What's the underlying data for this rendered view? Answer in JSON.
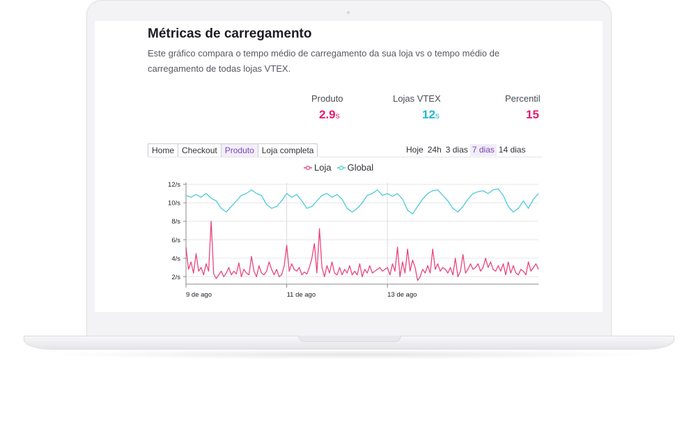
{
  "header": {
    "title": "Métricas de carregamento",
    "description": "Este gráfico compara o tempo médio de carregamento da sua loja vs o tempo médio de carregamento de todas lojas VTEX."
  },
  "metrics": [
    {
      "label": "Produto",
      "value": "2.9",
      "unit": "s",
      "color": "#e8196e"
    },
    {
      "label": "Lojas VTEX",
      "value": "12",
      "unit": "s",
      "color": "#1fb8d1"
    },
    {
      "label": "Percentil",
      "value": "15",
      "unit": "",
      "color": "#e8196e"
    }
  ],
  "page_tabs": [
    {
      "label": "Home",
      "active": false
    },
    {
      "label": "Checkout",
      "active": false
    },
    {
      "label": "Produto",
      "active": true
    },
    {
      "label": "Loja completa",
      "active": false
    }
  ],
  "range_tabs": [
    {
      "label": "Hoje",
      "active": false
    },
    {
      "label": "24h",
      "active": false
    },
    {
      "label": "3 dias",
      "active": false
    },
    {
      "label": "7 dias",
      "active": true
    },
    {
      "label": "14 dias",
      "active": false
    }
  ],
  "colors": {
    "accent": "#7a46b3",
    "loja": "#e8457e",
    "global": "#4dc9dc"
  },
  "chart_data": {
    "type": "line",
    "title": "",
    "xlabel": "",
    "ylabel": "",
    "ylim": [
      1.2,
      12.2
    ],
    "xlim": [
      0,
      7
    ],
    "y_ticks": [
      {
        "value": 12,
        "label": "12/s"
      },
      {
        "value": 10,
        "label": "10/s"
      },
      {
        "value": 8,
        "label": "8/s"
      },
      {
        "value": 6,
        "label": "6/s"
      },
      {
        "value": 4,
        "label": "4/s"
      },
      {
        "value": 2,
        "label": "2/s"
      }
    ],
    "x_ticks": [
      {
        "value": 0,
        "label": "9 de ago"
      },
      {
        "value": 2,
        "label": "11 de ago"
      },
      {
        "value": 4,
        "label": "13 de ago"
      }
    ],
    "legend": "top-center",
    "grid": true,
    "series": [
      {
        "name": "Loja",
        "color": "#e8457e",
        "x": [
          0,
          0.05,
          0.1,
          0.15,
          0.2,
          0.25,
          0.3,
          0.35,
          0.4,
          0.45,
          0.5,
          0.55,
          0.6,
          0.65,
          0.7,
          0.75,
          0.8,
          0.85,
          0.9,
          0.95,
          1,
          1.05,
          1.1,
          1.15,
          1.2,
          1.25,
          1.3,
          1.35,
          1.4,
          1.45,
          1.5,
          1.55,
          1.6,
          1.65,
          1.7,
          1.75,
          1.8,
          1.85,
          1.9,
          1.95,
          2,
          2.05,
          2.1,
          2.15,
          2.2,
          2.25,
          2.3,
          2.35,
          2.4,
          2.45,
          2.5,
          2.55,
          2.6,
          2.65,
          2.7,
          2.75,
          2.8,
          2.85,
          2.9,
          2.95,
          3,
          3.05,
          3.1,
          3.15,
          3.2,
          3.25,
          3.3,
          3.35,
          3.4,
          3.45,
          3.5,
          3.55,
          3.6,
          3.65,
          3.7,
          3.75,
          3.8,
          3.85,
          3.9,
          3.95,
          4,
          4.05,
          4.1,
          4.15,
          4.2,
          4.25,
          4.3,
          4.35,
          4.4,
          4.45,
          4.5,
          4.55,
          4.6,
          4.65,
          4.7,
          4.75,
          4.8,
          4.85,
          4.9,
          4.95,
          5,
          5.05,
          5.1,
          5.15,
          5.2,
          5.25,
          5.3,
          5.35,
          5.4,
          5.45,
          5.5,
          5.55,
          5.6,
          5.65,
          5.7,
          5.75,
          5.8,
          5.85,
          5.9,
          5.95,
          6,
          6.05,
          6.1,
          6.15,
          6.2,
          6.25,
          6.3,
          6.35,
          6.4,
          6.45,
          6.5,
          6.55,
          6.6,
          6.65,
          6.7,
          6.75,
          6.8,
          6.85,
          6.9,
          6.95,
          7
        ],
        "values": [
          5.2,
          2.8,
          3.6,
          2.4,
          4.5,
          2.6,
          3.0,
          2.2,
          3.4,
          2.6,
          8.0,
          2.3,
          1.8,
          2.2,
          2.6,
          2.0,
          2.4,
          3.0,
          2.2,
          2.6,
          2.3,
          3.5,
          2.0,
          2.8,
          2.4,
          2.2,
          4.2,
          2.6,
          2.0,
          3.2,
          2.4,
          2.2,
          2.6,
          3.6,
          2.8,
          2.2,
          2.8,
          2.0,
          2.2,
          3.2,
          5.4,
          2.6,
          3.4,
          2.8,
          2.6,
          3.0,
          2.2,
          2.5,
          2.3,
          3.0,
          4.0,
          5.6,
          2.4,
          7.2,
          3.0,
          2.0,
          3.2,
          2.4,
          3.6,
          2.4,
          2.2,
          3.0,
          2.2,
          2.8,
          2.4,
          3.2,
          2.2,
          2.6,
          2.2,
          3.4,
          2.0,
          2.8,
          2.4,
          3.2,
          2.4,
          2.6,
          2.8,
          3.0,
          2.6,
          2.8,
          3.0,
          2.2,
          3.4,
          2.6,
          5.2,
          2.0,
          3.6,
          2.4,
          5.0,
          2.6,
          3.8,
          3.0,
          1.6,
          2.0,
          2.8,
          2.4,
          3.2,
          2.4,
          5.0,
          2.8,
          3.4,
          2.6,
          3.0,
          2.8,
          2.4,
          3.0,
          2.2,
          4.0,
          2.0,
          2.6,
          4.4,
          2.4,
          2.8,
          3.4,
          2.8,
          3.0,
          3.4,
          2.6,
          3.0,
          4.0,
          3.0,
          3.6,
          2.8,
          2.6,
          3.2,
          2.6,
          3.4,
          2.2,
          3.6,
          2.4,
          3.2,
          2.4,
          2.2,
          2.8,
          2.6,
          2.2,
          3.6,
          2.6,
          3.0,
          3.4,
          2.8
        ]
      },
      {
        "name": "Global",
        "color": "#4dc9dc",
        "x": [
          0,
          0.1,
          0.2,
          0.3,
          0.4,
          0.5,
          0.6,
          0.7,
          0.8,
          0.9,
          1,
          1.1,
          1.2,
          1.3,
          1.4,
          1.5,
          1.6,
          1.7,
          1.8,
          1.9,
          2,
          2.1,
          2.2,
          2.3,
          2.4,
          2.5,
          2.6,
          2.7,
          2.8,
          2.9,
          3,
          3.1,
          3.2,
          3.3,
          3.4,
          3.5,
          3.6,
          3.7,
          3.8,
          3.9,
          4,
          4.1,
          4.2,
          4.3,
          4.4,
          4.5,
          4.6,
          4.7,
          4.8,
          4.9,
          5,
          5.1,
          5.2,
          5.3,
          5.4,
          5.5,
          5.6,
          5.7,
          5.8,
          5.9,
          6,
          6.1,
          6.2,
          6.3,
          6.4,
          6.5,
          6.6,
          6.7,
          6.8,
          6.9,
          7
        ],
        "values": [
          10.8,
          10.6,
          10.9,
          10.6,
          11.0,
          10.5,
          10.2,
          9.4,
          9.0,
          9.6,
          10.2,
          10.8,
          11.0,
          11.4,
          11.0,
          10.8,
          9.8,
          9.4,
          9.6,
          10.2,
          11.0,
          10.6,
          10.9,
          10.2,
          9.4,
          9.6,
          10.2,
          10.8,
          11.0,
          10.6,
          10.9,
          10.4,
          9.4,
          9.0,
          9.4,
          10.0,
          10.8,
          11.0,
          11.4,
          10.8,
          11.0,
          10.7,
          11.0,
          10.4,
          9.2,
          8.8,
          9.6,
          10.4,
          11.0,
          11.3,
          11.4,
          10.8,
          10.2,
          9.4,
          9.0,
          9.6,
          10.4,
          11.0,
          11.2,
          11.3,
          11.0,
          11.4,
          11.5,
          10.8,
          9.6,
          9.0,
          9.4,
          10.2,
          9.4,
          10.4,
          11.0
        ]
      }
    ]
  }
}
